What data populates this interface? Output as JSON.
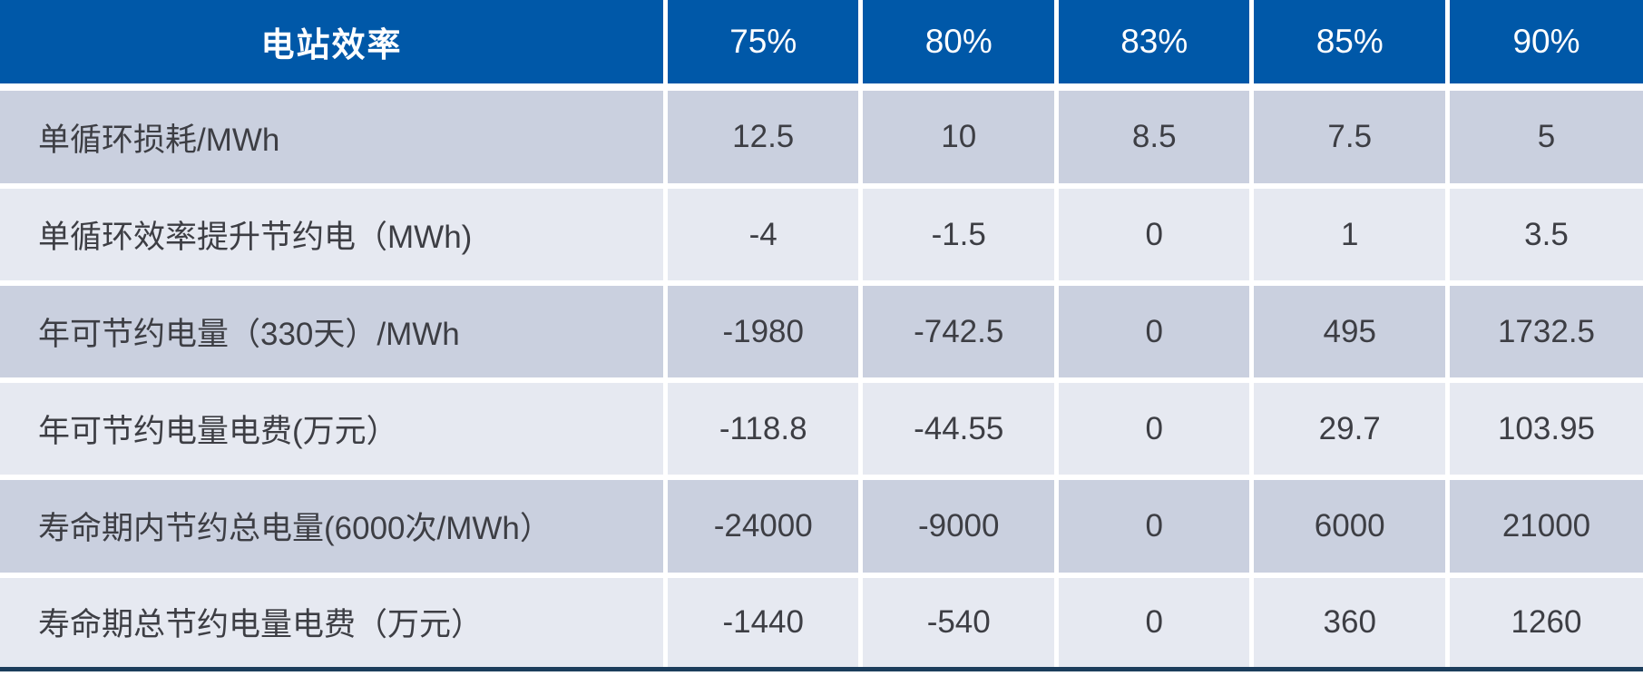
{
  "chart_data": {
    "type": "table",
    "title_cell": "电站效率",
    "columns": [
      "75%",
      "80%",
      "83%",
      "85%",
      "90%"
    ],
    "rows": [
      {
        "label": "单循环损耗/MWh",
        "values": [
          12.5,
          10,
          8.5,
          7.5,
          5
        ]
      },
      {
        "label": "单循环效率提升节约电（MWh)",
        "values": [
          -4,
          -1.5,
          0,
          1,
          3.5
        ]
      },
      {
        "label": "年可节约电量（330天）/MWh",
        "values": [
          -1980,
          -742.5,
          0,
          495,
          1732.5
        ]
      },
      {
        "label": "年可节约电量电费(万元）",
        "values": [
          -118.8,
          -44.55,
          0,
          29.7,
          103.95
        ]
      },
      {
        "label": "寿命期内节约总电量(6000次/MWh）",
        "values": [
          -24000,
          -9000,
          0,
          6000,
          21000
        ]
      },
      {
        "label": "寿命期总节约电量电费（万元）",
        "values": [
          -1440,
          -540,
          0,
          360,
          1260
        ]
      }
    ],
    "layout": {
      "grid": "white 5-6px gridlines",
      "legend": "none"
    }
  },
  "colors": {
    "header_bg": "#0058a8",
    "header_text": "#ffffff",
    "row_dark": "#cad0df",
    "row_light": "#e6e9f1",
    "body_text": "#3d3e44",
    "gridline": "#ffffff",
    "bottom_rule": "#1c3d5c"
  }
}
